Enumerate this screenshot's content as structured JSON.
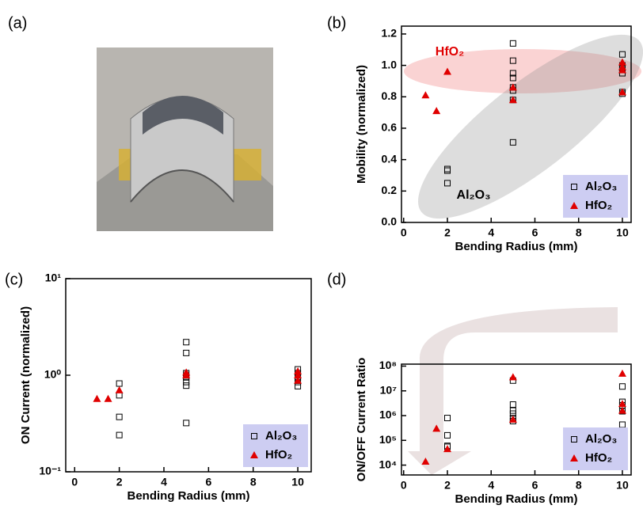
{
  "panel_labels": [
    "(a)",
    "(b)",
    "(c)",
    "(d)"
  ],
  "chart_data": [
    {
      "type": "scatter",
      "x_label": "Bending Radius (mm)",
      "y_label": "Mobility (normalized)",
      "xlim": [
        -0.1,
        10.4
      ],
      "xticks": [
        0,
        2,
        4,
        6,
        8,
        10
      ],
      "ylim": [
        0,
        1.25
      ],
      "yticks": [
        {
          "value": 0,
          "label": "0.0"
        },
        0.2,
        0.4,
        0.6,
        0.8,
        {
          "value": 1,
          "label": "1.0"
        },
        1.2
      ],
      "log_y": false,
      "legend": "lower right",
      "annotations": [
        "HfO₂",
        "Al₂O₃"
      ],
      "series": [
        {
          "name": "Al₂O₃",
          "color": "#000000",
          "marker": "square",
          "x": [
            2,
            2,
            2,
            5,
            5,
            5,
            5,
            5,
            5,
            5,
            5,
            10,
            10,
            10,
            10,
            10,
            10
          ],
          "values": [
            0.33,
            0.34,
            0.25,
            1.14,
            1.03,
            0.95,
            0.92,
            0.86,
            0.84,
            0.78,
            0.51,
            1.07,
            1.0,
            0.98,
            0.95,
            0.83,
            0.82
          ]
        },
        {
          "name": "HfO₂",
          "color": "#e00000",
          "marker": "triangle",
          "x": [
            1,
            1.5,
            2,
            5,
            5,
            10,
            10,
            10,
            10
          ],
          "values": [
            0.81,
            0.71,
            0.96,
            0.86,
            0.78,
            1.02,
            0.99,
            0.97,
            0.83
          ]
        }
      ]
    },
    {
      "type": "scatter",
      "x_label": "Bending Radius (mm)",
      "y_label": "ON Current (normalized)",
      "xlim": [
        -0.4,
        10.6
      ],
      "xticks": [
        0,
        2,
        4,
        6,
        8,
        10
      ],
      "ylim": [
        0.1,
        10
      ],
      "yticks": [
        {
          "value": 0.1,
          "label": "10⁻¹"
        },
        {
          "value": 1,
          "label": "10⁰"
        },
        {
          "value": 10,
          "label": "10¹"
        }
      ],
      "log_y": true,
      "legend": "lower right",
      "series": [
        {
          "name": "Al₂O₃",
          "color": "#000000",
          "marker": "square",
          "x": [
            2,
            2,
            2,
            2,
            5,
            5,
            5,
            5,
            5,
            5,
            5,
            10,
            10,
            10,
            10,
            10
          ],
          "values": [
            0.82,
            0.62,
            0.37,
            0.24,
            2.2,
            1.7,
            1.05,
            0.95,
            0.85,
            0.78,
            0.32,
            1.15,
            1.05,
            0.95,
            0.85,
            0.77
          ]
        },
        {
          "name": "HfO₂",
          "color": "#e00000",
          "marker": "triangle",
          "x": [
            1,
            1.5,
            2,
            5,
            5,
            10,
            10,
            10
          ],
          "values": [
            0.57,
            0.57,
            0.7,
            1.07,
            1.0,
            1.1,
            1.0,
            0.88
          ]
        }
      ]
    },
    {
      "type": "scatter",
      "x_label": "Bending Radius (mm)",
      "y_label": "ON/OFF Current Ratio",
      "xlim": [
        -0.1,
        10.4
      ],
      "xticks": [
        0,
        2,
        4,
        6,
        8,
        10
      ],
      "ylim": [
        4000,
        120000000
      ],
      "yticks": [
        {
          "value": 10000,
          "label": "10⁴"
        },
        {
          "value": 100000,
          "label": "10⁵"
        },
        {
          "value": 1000000,
          "label": "10⁶"
        },
        {
          "value": 10000000,
          "label": "10⁷"
        },
        {
          "value": 100000000,
          "label": "10⁸"
        }
      ],
      "log_y": true,
      "legend": "lower right",
      "series": [
        {
          "name": "Al₂O₃",
          "color": "#000000",
          "marker": "square",
          "x": [
            2,
            2,
            2,
            2,
            5,
            5,
            5,
            5,
            5,
            5,
            10,
            10,
            10,
            10,
            10,
            10
          ],
          "values": [
            800000,
            160000,
            60000,
            55000,
            26000000,
            2800000,
            1600000,
            1200000,
            800000,
            600000,
            15000000,
            3600000,
            2600000,
            1500000,
            430000,
            210000
          ]
        },
        {
          "name": "HfO₂",
          "color": "#e00000",
          "marker": "triangle",
          "x": [
            1,
            1.5,
            2,
            5,
            5,
            10,
            10,
            10
          ],
          "values": [
            14000,
            300000,
            45000,
            36000000,
            700000,
            50000000,
            3000000,
            1600000
          ]
        }
      ]
    }
  ]
}
